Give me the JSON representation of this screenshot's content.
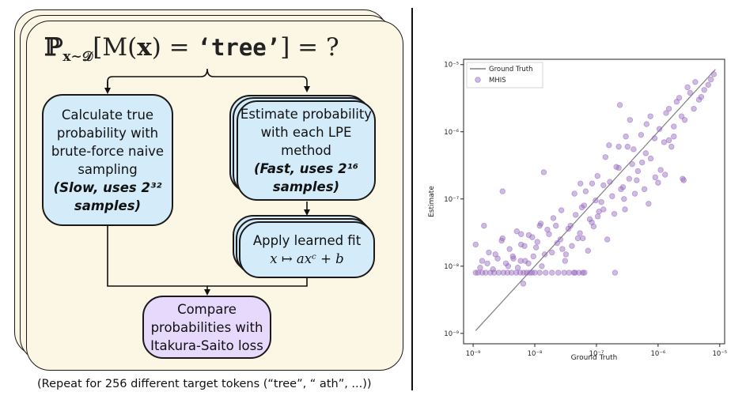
{
  "diagram": {
    "formula": {
      "prob": "ℙ",
      "subscript": "x∼𝒟",
      "body_pre": "[M(",
      "x_bold": "x",
      "body_mid": ") = ",
      "token": "‘tree’",
      "body_post": "] = ?"
    },
    "true_prob": {
      "text": "Calculate true probability with brute-force naive sampling",
      "note": "(Slow, uses 2³² samples)"
    },
    "estimate": {
      "text": "Estimate probability with each LPE method",
      "note": "(Fast, uses 2¹⁶ samples)"
    },
    "fit": {
      "text": "Apply learned fit",
      "formula": "x ↦ axᶜ + b"
    },
    "compare": {
      "text": "Compare probabilities with Itakura-Saito loss"
    },
    "caption": "(Repeat for 256 different target tokens (“tree”, “ ath”, ...))",
    "colors": {
      "card": "#fcf6e4",
      "blue": "#d4ecfa",
      "purple": "#e6d9fc"
    }
  },
  "chart_data": {
    "type": "scatter",
    "xlabel": "Ground Truth",
    "ylabel": "Estimate",
    "x_scale": "log",
    "y_scale": "log",
    "xlim": [
      7e-10,
      1.2e-05
    ],
    "ylim": [
      7e-10,
      1.2e-05
    ],
    "x_ticks": [
      {
        "value": 1e-09,
        "label": "10⁻⁹"
      },
      {
        "value": 1e-08,
        "label": "10⁻⁸"
      },
      {
        "value": 1e-07,
        "label": "10⁻⁷"
      },
      {
        "value": 1e-06,
        "label": "10⁻⁶"
      },
      {
        "value": 1e-05,
        "label": "10⁻⁵"
      }
    ],
    "y_ticks": [
      {
        "value": 1e-09,
        "label": "10⁻⁹"
      },
      {
        "value": 1e-08,
        "label": "10⁻⁸"
      },
      {
        "value": 1e-07,
        "label": "10⁻⁷"
      },
      {
        "value": 1e-06,
        "label": "10⁻⁶"
      },
      {
        "value": 1e-05,
        "label": "10⁻⁵"
      }
    ],
    "legend_position": "top-left",
    "grid": false,
    "series": [
      {
        "name": "Ground Truth",
        "kind": "line",
        "color": "#7f7f7f",
        "x": [
          1.1e-09,
          8.5e-06
        ],
        "y": [
          1.1e-09,
          8.5e-06
        ]
      },
      {
        "name": "MHIS",
        "kind": "scatter",
        "color": "#9467bd",
        "x": [
          1.1e-09,
          1.2e-09,
          1.4e-09,
          1.6e-09,
          1.9e-09,
          2.2e-09,
          2.6e-09,
          3.1e-09,
          3.6e-09,
          4.2e-09,
          5e-09,
          5.8e-09,
          6.6e-09,
          7.4e-09,
          8.3e-09,
          1e-08,
          1.2e-08,
          1.5e-08,
          1.9e-08,
          2.4e-08,
          3e-08,
          3.6e-08,
          4.3e-08,
          5.2e-08,
          6e-08,
          6.4e-08,
          1.1e-09,
          1.4e-09,
          1.8e-09,
          2.1e-09,
          2.5e-09,
          3e-09,
          3.4e-09,
          3.9e-09,
          4.5e-09,
          5.3e-09,
          6e-09,
          7e-09,
          8e-09,
          9.5e-09,
          1.1e-08,
          1.3e-08,
          1.6e-08,
          1.9e-08,
          2.2e-08,
          2.6e-08,
          3.1e-08,
          3.5e-08,
          4e-08,
          4.6e-08,
          5.4e-08,
          6.3e-08,
          7.3e-08,
          8.4e-08,
          9.7e-08,
          1.1e-07,
          1.3e-07,
          1.5e-07,
          1.8e-07,
          2.1e-07,
          2.5e-07,
          2.9e-07,
          3.4e-07,
          4e-07,
          4.7e-07,
          5.5e-07,
          6.5e-07,
          7.6e-07,
          9e-07,
          1.05e-06,
          1.25e-06,
          1.5e-06,
          1.8e-06,
          2.2e-06,
          2.7e-06,
          3.3e-06,
          4e-06,
          5e-06,
          6.5e-06,
          8e-06,
          1.3e-09,
          1.7e-09,
          2.3e-09,
          2.9e-09,
          3.7e-09,
          4.4e-09,
          5.1e-09,
          5.9e-09,
          6.8e-09,
          7.9e-09,
          9.1e-09,
          1.05e-08,
          1.25e-08,
          1.45e-08,
          1.7e-08,
          2e-08,
          2.3e-08,
          2.7e-08,
          3.2e-08,
          3.8e-08,
          4.4e-08,
          5e-08,
          5.8e-08,
          6.7e-08,
          7.8e-08,
          9e-08,
          1.04e-07,
          1.2e-07,
          1.4e-07,
          1.65e-07,
          1.95e-07,
          2.3e-07,
          2.7e-07,
          3.2e-07,
          3.8e-07,
          4.5e-07,
          5.3e-07,
          6.3e-07,
          7.5e-07,
          8.8e-07,
          1.1e-06,
          1.35e-06,
          1.65e-06,
          2e-06,
          2.4e-06,
          3e-06,
          3.8e-06,
          4.6e-06,
          5.6e-06,
          7.2e-06,
          3e-09,
          6e-09,
          1.2e-08,
          2.8e-08,
          6e-08,
          1.3e-07,
          2.8e-07,
          6e-07,
          1.3e-06,
          2.6e-06,
          1.5e-09,
          6.5e-09,
          1.4e-08,
          9e-09,
          2e-07,
          4.5e-08,
          2.4e-07,
          3.5e-07,
          8.5e-08,
          5.5e-08,
          1.05e-07,
          1.6e-07,
          3e-07,
          4.2e-07,
          1e-06,
          1.5e-06,
          1.8e-06,
          2.5e-06,
          7e-07,
          2.3e-07
        ],
        "y": [
          8e-09,
          8e-09,
          8e-09,
          8e-09,
          8e-09,
          8e-09,
          8e-09,
          8e-09,
          8e-09,
          8e-09,
          8e-09,
          8e-09,
          8e-09,
          8e-09,
          8e-09,
          8e-09,
          8e-09,
          8e-09,
          8e-09,
          8e-09,
          8e-09,
          8e-09,
          8e-09,
          8e-09,
          8e-09,
          8e-09,
          2.1e-08,
          1.2e-08,
          1.6e-08,
          9e-09,
          1.3e-08,
          2.6e-08,
          1.1e-08,
          1.8e-08,
          1.3e-08,
          9.5e-09,
          2.1e-08,
          1.2e-08,
          2.9e-08,
          1.4e-08,
          2.3e-08,
          1e-08,
          3.5e-08,
          1.6e-08,
          4e-08,
          2.5e-08,
          1.2e-08,
          3.6e-08,
          2e-08,
          5.8e-08,
          3.1e-08,
          8e-08,
          1.7e-08,
          4.5e-08,
          9.5e-08,
          6.5e-08,
          1.6e-07,
          2.5e-08,
          1.1e-07,
          3e-07,
          1.4e-07,
          7e-08,
          2e-07,
          5.5e-07,
          2.6e-07,
          3.5e-07,
          1.3e-06,
          4e-07,
          2.1e-07,
          1.1e-06,
          7e-07,
          2.2e-06,
          1.2e-06,
          3.2e-06,
          1.5e-06,
          3.8e-06,
          5.5e-06,
          3.3e-06,
          5e-06,
          7.2e-06,
          9.5e-09,
          1.1e-08,
          1.5e-08,
          2.4e-08,
          1e-08,
          1.4e-08,
          3.3e-08,
          1.2e-08,
          2e-08,
          1.1e-08,
          2.7e-08,
          1.9e-08,
          4.3e-08,
          1.5e-08,
          3e-08,
          5.2e-08,
          2.2e-08,
          6.8e-08,
          1.5e-08,
          4e-08,
          1.2e-07,
          2.6e-08,
          7.5e-08,
          1.3e-07,
          5e-08,
          3.9e-08,
          2.2e-07,
          9e-08,
          4.2e-07,
          1.8e-07,
          6e-08,
          2.9e-07,
          1.5e-07,
          6e-07,
          3.3e-07,
          1.9e-07,
          9e-07,
          4.8e-07,
          1.7e-06,
          8e-07,
          2.7e-07,
          1.9e-06,
          6e-07,
          2.8e-06,
          1.7e-06,
          4.6e-06,
          2.2e-06,
          3e-06,
          4.2e-06,
          6e-06,
          1.3e-07,
          3e-08,
          4e-08,
          1.8e-08,
          2.6e-08,
          7e-08,
          1e-07,
          1.4e-07,
          2.3e-07,
          1.9e-07,
          4e-08,
          5.5e-09,
          2.5e-07,
          8e-09,
          8e-09,
          8e-09,
          2.5e-06,
          1.5e-06,
          1.7e-07,
          1.7e-07,
          5.5e-08,
          6.3e-07,
          8.5e-07,
          1.2e-07,
          1.75e-07,
          7.5e-07,
          8.5e-07,
          2e-07,
          8.5e-08,
          6e-07
        ]
      }
    ]
  }
}
